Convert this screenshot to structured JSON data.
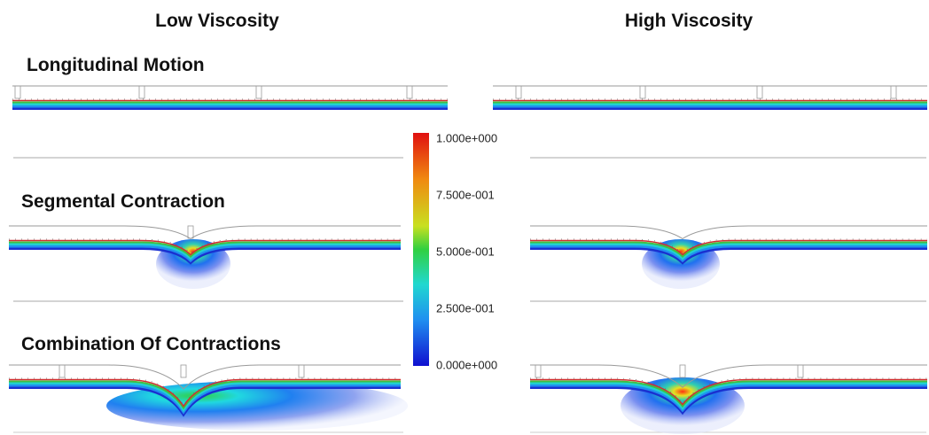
{
  "columns": [
    "Low Viscosity",
    "High Viscosity"
  ],
  "rows": [
    "Longitudinal Motion",
    "Segmental Contraction",
    "Combination Of Contractions"
  ],
  "colorbar": {
    "labels": [
      "1.000e+000",
      "7.500e-001",
      "5.000e-001",
      "2.500e-001",
      "0.000e+000"
    ]
  }
}
